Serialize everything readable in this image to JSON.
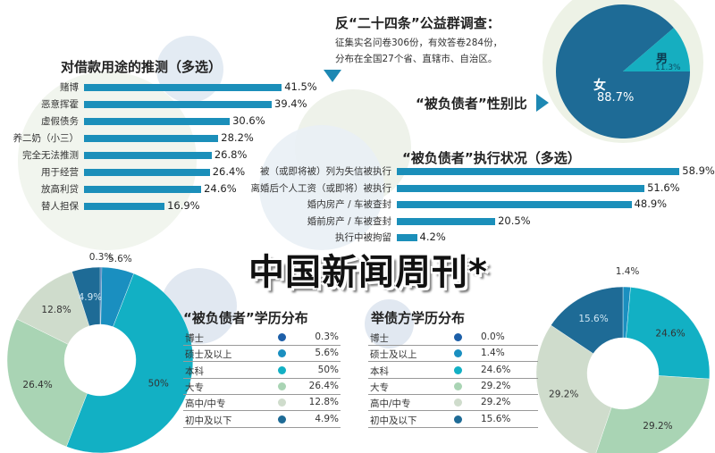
{
  "header": {
    "title": "反“二十四条”公益群调查：",
    "line1": "征集实名问卷306份，有效答卷284份，",
    "line2": "分布在全国27个省、直辖市、自治区。"
  },
  "watermark": "中国新闻周刊",
  "colors": {
    "bar": "#1b8fba",
    "phd": "#1d5fa8",
    "master": "#1a8fc0",
    "bachelor": "#12b0c4",
    "college": "#a9d4b4",
    "highschool": "#cfdccc",
    "middle": "#1e6b96",
    "female": "#1e6b96",
    "male": "#16aec0"
  },
  "chart_data": [
    {
      "type": "bar",
      "orientation": "horizontal",
      "title": "对借款用途的推测（多选）",
      "categories": [
        "赌博",
        "恶意挥霍",
        "虚假债务",
        "养二奶（小三）",
        "完全无法推测",
        "用于经营",
        "放高利贷",
        "替人担保"
      ],
      "values": [
        41.5,
        39.4,
        30.6,
        28.2,
        26.8,
        26.4,
        24.6,
        16.9
      ],
      "labels": [
        "41.5%",
        "39.4%",
        "30.6%",
        "28.2%",
        "26.8%",
        "26.4%",
        "24.6%",
        "16.9%"
      ],
      "unit": "%"
    },
    {
      "type": "pie",
      "title": "“被负债者”性别比",
      "categories": [
        "女",
        "男"
      ],
      "values": [
        88.7,
        11.3
      ],
      "labels": [
        "88.7%",
        "11.3%"
      ]
    },
    {
      "type": "bar",
      "orientation": "horizontal",
      "title": "“被负债者”执行状况（多选）",
      "categories": [
        "被（或即将被）列为失信被执行",
        "离婚后个人工资（或即将）被执行",
        "婚内房产 / 车被查封",
        "婚前房产 / 车被查封",
        "执行中被拘留"
      ],
      "values": [
        58.9,
        51.6,
        48.9,
        20.5,
        4.2
      ],
      "labels": [
        "58.9%",
        "51.6%",
        "48.9%",
        "20.5%",
        "4.2%"
      ],
      "unit": "%"
    },
    {
      "type": "pie",
      "donut": true,
      "title": "“被负债者”学历分布",
      "categories": [
        "博士",
        "硕士及以上",
        "本科",
        "大专",
        "高中/中专",
        "初中及以下"
      ],
      "values": [
        0.3,
        5.6,
        50,
        26.4,
        12.8,
        4.9
      ],
      "labels": [
        "0.3%",
        "5.6%",
        "50%",
        "26.4%",
        "12.8%",
        "4.9%"
      ]
    },
    {
      "type": "pie",
      "donut": true,
      "title": "举债方学历分布",
      "categories": [
        "博士",
        "硕士及以上",
        "本科",
        "大专",
        "高中/中专",
        "初中及以下"
      ],
      "values": [
        0.0,
        1.4,
        24.6,
        29.2,
        29.2,
        15.6
      ],
      "labels": [
        "0.0%",
        "1.4%",
        "24.6%",
        "29.2%",
        "29.2%",
        "15.6%"
      ]
    }
  ]
}
